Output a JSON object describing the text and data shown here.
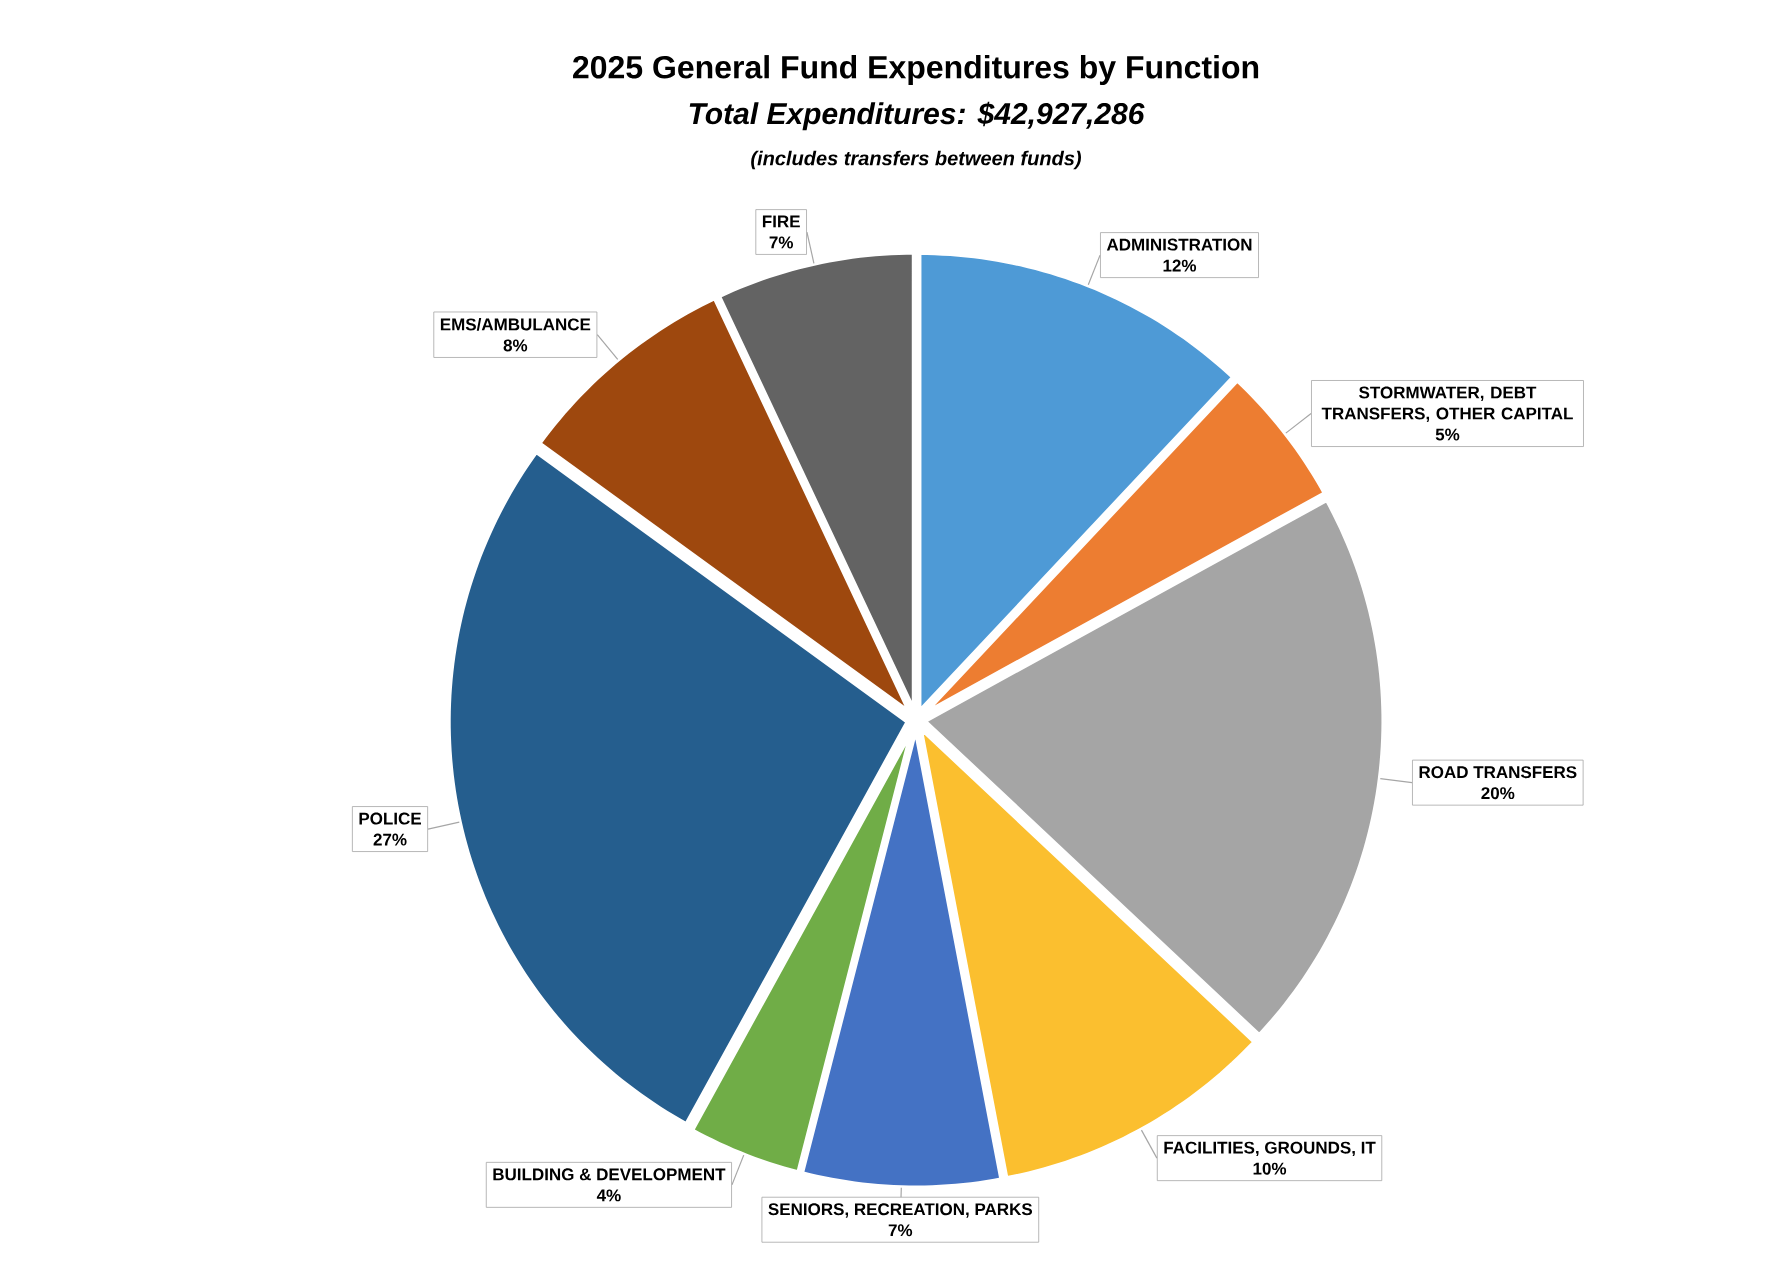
{
  "chart_data": {
    "type": "pie",
    "title": "2025 General Fund Expenditures by Function",
    "subtitle": "Total Expenditures: $42,927,286",
    "annotations": [
      "(includes transfers between funds)"
    ],
    "categories": [
      "ADMINISTRATION",
      "STORMWATER, DEBT TRANSFERS, OTHER CAPITAL",
      "ROAD TRANSFERS",
      "FACILITIES, GROUNDS, IT",
      "SENIORS, RECREATION, PARKS",
      "BUILDING & DEVELOPMENT",
      "POLICE",
      "EMS/AMBULANCE",
      "FIRE"
    ],
    "values": [
      12,
      5,
      20,
      10,
      7,
      4,
      27,
      8,
      7
    ],
    "value_labels": [
      "12%",
      "5%",
      "20%",
      "10%",
      "7%",
      "4%",
      "27%",
      "8%",
      "7%"
    ],
    "colors": [
      "#4e9ad6",
      "#ed7d31",
      "#a5a5a5",
      "#fbbf2f",
      "#4472c4",
      "#70ad47",
      "#255e8e",
      "#9e480e",
      "#636363"
    ]
  }
}
